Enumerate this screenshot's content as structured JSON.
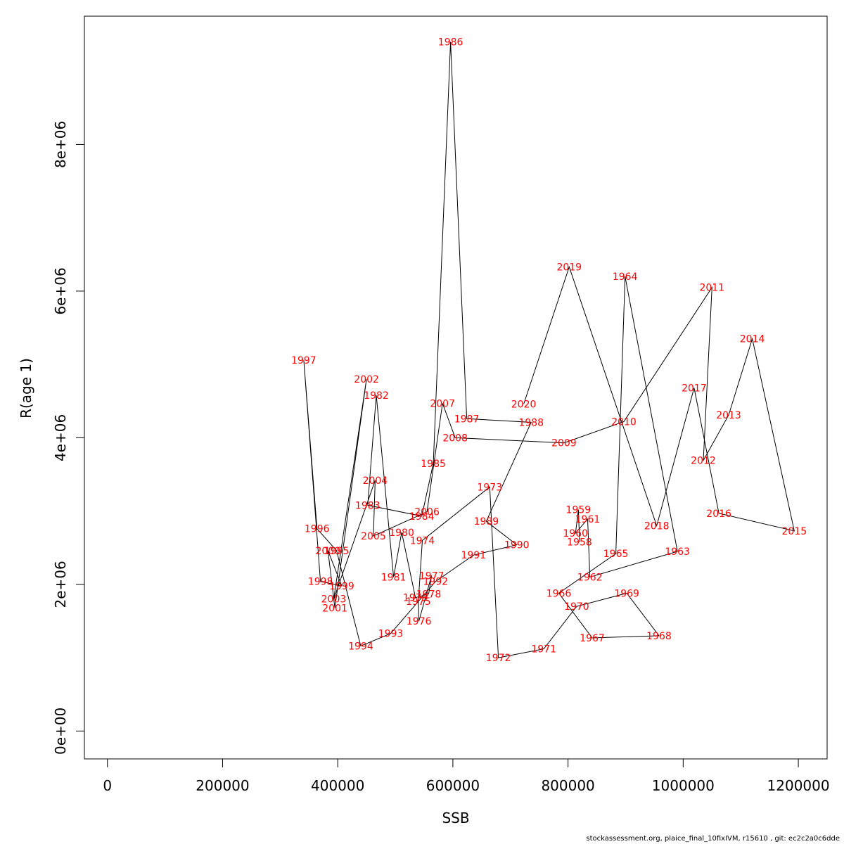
{
  "chart_data": {
    "type": "line",
    "title": "",
    "xlabel": "SSB",
    "ylabel": "R(age 1)",
    "xlim": [
      -40000,
      1250000
    ],
    "ylim": [
      -380000,
      9750000
    ],
    "x_ticks": [
      0,
      200000,
      400000,
      600000,
      800000,
      1000000,
      1200000
    ],
    "x_tick_labels": [
      "0",
      "200000",
      "400000",
      "600000",
      "800000",
      "1000000",
      "1200000"
    ],
    "y_ticks": [
      0,
      2000000,
      4000000,
      6000000,
      8000000
    ],
    "y_tick_labels": [
      "0e+00",
      "2e+06",
      "4e+06",
      "6e+06",
      "8e+06"
    ],
    "grid": false,
    "label_color": "#ff0000",
    "line_color": "#000000",
    "points": [
      {
        "label": "1958",
        "x": 820000,
        "y": 2580000
      },
      {
        "label": "1959",
        "x": 818000,
        "y": 3020000
      },
      {
        "label": "1960",
        "x": 813000,
        "y": 2700000
      },
      {
        "label": "1961",
        "x": 834000,
        "y": 2890000
      },
      {
        "label": "1962",
        "x": 838000,
        "y": 2100000
      },
      {
        "label": "1963",
        "x": 990000,
        "y": 2450000
      },
      {
        "label": "1964",
        "x": 899000,
        "y": 6200000
      },
      {
        "label": "1965",
        "x": 883000,
        "y": 2420000
      },
      {
        "label": "1966",
        "x": 784000,
        "y": 1880000
      },
      {
        "label": "1967",
        "x": 842000,
        "y": 1270000
      },
      {
        "label": "1968",
        "x": 958000,
        "y": 1300000
      },
      {
        "label": "1969",
        "x": 902000,
        "y": 1880000
      },
      {
        "label": "1970",
        "x": 815000,
        "y": 1700000
      },
      {
        "label": "1971",
        "x": 758000,
        "y": 1120000
      },
      {
        "label": "1972",
        "x": 679000,
        "y": 1000000
      },
      {
        "label": "1973",
        "x": 664000,
        "y": 3330000
      },
      {
        "label": "1974",
        "x": 547000,
        "y": 2600000
      },
      {
        "label": "1975",
        "x": 540000,
        "y": 1770000
      },
      {
        "label": "1976",
        "x": 541000,
        "y": 1500000
      },
      {
        "label": "1977",
        "x": 563000,
        "y": 2120000
      },
      {
        "label": "1978",
        "x": 558000,
        "y": 1870000
      },
      {
        "label": "1979",
        "x": 535000,
        "y": 1820000
      },
      {
        "label": "1980",
        "x": 511000,
        "y": 2710000
      },
      {
        "label": "1981",
        "x": 497000,
        "y": 2100000
      },
      {
        "label": "1982",
        "x": 467000,
        "y": 4580000
      },
      {
        "label": "1983",
        "x": 452000,
        "y": 3080000
      },
      {
        "label": "1984",
        "x": 546000,
        "y": 2930000
      },
      {
        "label": "1985",
        "x": 566000,
        "y": 3650000
      },
      {
        "label": "1986",
        "x": 596000,
        "y": 9400000
      },
      {
        "label": "1987",
        "x": 624000,
        "y": 4260000
      },
      {
        "label": "1988",
        "x": 736000,
        "y": 4210000
      },
      {
        "label": "1989",
        "x": 658000,
        "y": 2860000
      },
      {
        "label": "1990",
        "x": 711000,
        "y": 2540000
      },
      {
        "label": "1991",
        "x": 636000,
        "y": 2400000
      },
      {
        "label": "1992",
        "x": 570000,
        "y": 2040000
      },
      {
        "label": "1993",
        "x": 492000,
        "y": 1330000
      },
      {
        "label": "1994",
        "x": 440000,
        "y": 1160000
      },
      {
        "label": "1995",
        "x": 398000,
        "y": 2460000
      },
      {
        "label": "1996",
        "x": 364000,
        "y": 2760000
      },
      {
        "label": "1997",
        "x": 341000,
        "y": 5060000
      },
      {
        "label": "1998",
        "x": 370000,
        "y": 2040000
      },
      {
        "label": "1999",
        "x": 407000,
        "y": 1980000
      },
      {
        "label": "2000",
        "x": 383000,
        "y": 2460000
      },
      {
        "label": "2001",
        "x": 395000,
        "y": 1680000
      },
      {
        "label": "2002",
        "x": 450000,
        "y": 4800000
      },
      {
        "label": "2003",
        "x": 393000,
        "y": 1800000
      },
      {
        "label": "2004",
        "x": 465000,
        "y": 3420000
      },
      {
        "label": "2005",
        "x": 462000,
        "y": 2660000
      },
      {
        "label": "2006",
        "x": 555000,
        "y": 2990000
      },
      {
        "label": "2007",
        "x": 582000,
        "y": 4470000
      },
      {
        "label": "2008",
        "x": 604000,
        "y": 4000000
      },
      {
        "label": "2009",
        "x": 793000,
        "y": 3930000
      },
      {
        "label": "2010",
        "x": 897000,
        "y": 4220000
      },
      {
        "label": "2011",
        "x": 1050000,
        "y": 6050000
      },
      {
        "label": "2012",
        "x": 1035000,
        "y": 3690000
      },
      {
        "label": "2013",
        "x": 1079000,
        "y": 4310000
      },
      {
        "label": "2014",
        "x": 1120000,
        "y": 5350000
      },
      {
        "label": "2015",
        "x": 1193000,
        "y": 2730000
      },
      {
        "label": "2016",
        "x": 1062000,
        "y": 2970000
      },
      {
        "label": "2017",
        "x": 1019000,
        "y": 4680000
      },
      {
        "label": "2018",
        "x": 954000,
        "y": 2800000
      },
      {
        "label": "2019",
        "x": 802000,
        "y": 6330000
      },
      {
        "label": "2020",
        "x": 723000,
        "y": 4460000
      }
    ]
  },
  "footer": "stockassessment.org, plaice_final_10fixIVM, r15610 , git: ec2c2a0c6dde"
}
